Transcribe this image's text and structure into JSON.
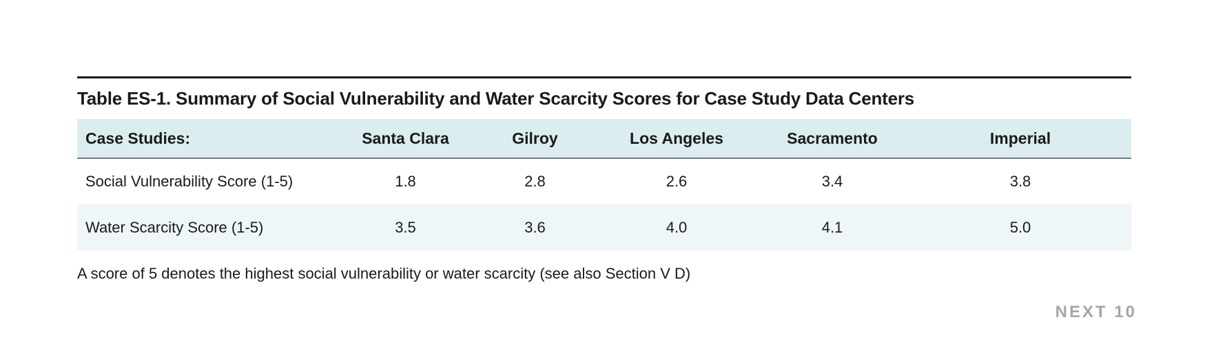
{
  "table": {
    "title": "Table ES-1. Summary of Social Vulnerability and Water Scarcity Scores for Case Study Data Centers",
    "headers": [
      "Case Studies:",
      "Santa Clara",
      "Gilroy",
      "Los Angeles",
      "Sacramento",
      "Imperial"
    ],
    "rows": [
      {
        "label": "Social Vulnerability Score (1-5)",
        "values": [
          "1.8",
          "2.8",
          "2.6",
          "3.4",
          "3.8"
        ]
      },
      {
        "label": "Water Scarcity Score (1-5)",
        "values": [
          "3.5",
          "3.6",
          "4.0",
          "4.1",
          "5.0"
        ]
      }
    ],
    "footnote": "A score of 5 denotes the highest social vulnerability or water scarcity (see also Section V D)"
  },
  "brand": {
    "text": "NEXT 10"
  },
  "colors": {
    "header_bg": "#dcedf0",
    "alt_row_bg": "#eef6f7",
    "brand_gray": "#a6a6a6"
  }
}
